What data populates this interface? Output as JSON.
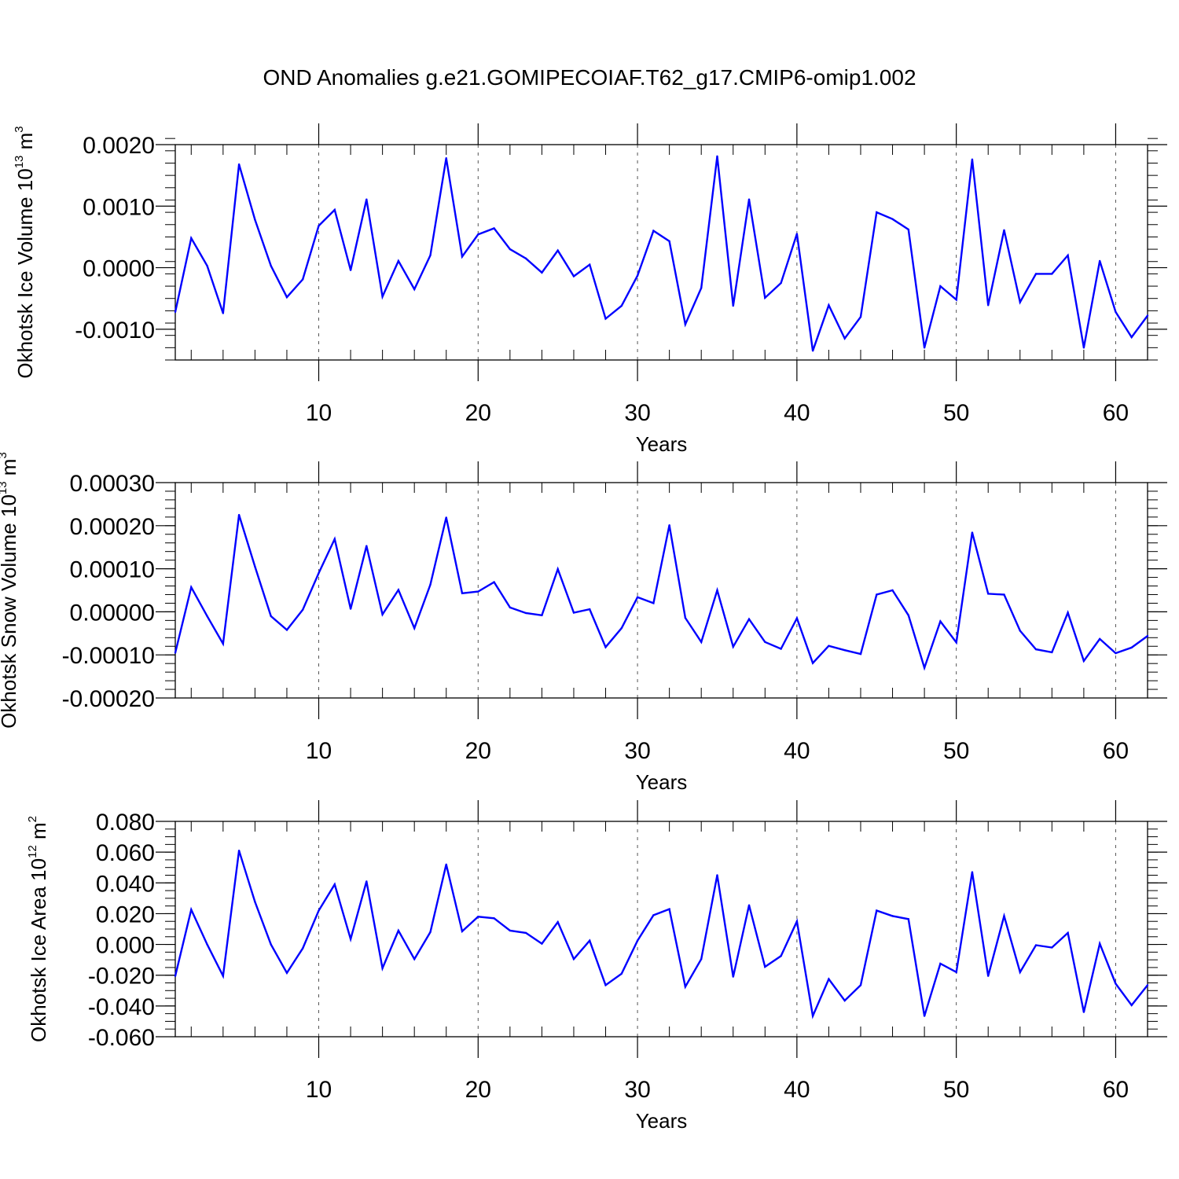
{
  "title": "OND Anomalies g.e21.GOMIPECOIAF.T62_g17.CMIP6-omip1.002",
  "colors": {
    "line": "#0000ff",
    "axis": "#000000",
    "grid": "#555555",
    "background": "#ffffff"
  },
  "chart_data": [
    {
      "type": "line",
      "ylabel_main": "Okhotsk Ice Volume 10",
      "ylabel_exp": "13",
      "ylabel_unit": " m",
      "ylabel_unit_exp": "3",
      "xlabel": "Years",
      "xlim": [
        1,
        62
      ],
      "ylim": [
        -0.0015,
        0.002
      ],
      "yticks": [
        -0.001,
        0.0,
        0.001,
        0.002
      ],
      "ytick_labels": [
        "-0.0010",
        "0.0000",
        "0.0010",
        "0.0020"
      ],
      "ymajor_step": 0.001,
      "yminor_step": 0.0002,
      "xticks": [
        10,
        20,
        30,
        40,
        50,
        60
      ],
      "xtick_labels": [
        "10",
        "20",
        "30",
        "40",
        "50",
        "60"
      ],
      "grid": "x-dashed",
      "series": [
        {
          "name": "Okhotsk Ice Volume",
          "x": [
            1,
            2,
            3,
            4,
            5,
            6,
            7,
            8,
            9,
            10,
            11,
            12,
            13,
            14,
            15,
            16,
            17,
            18,
            19,
            20,
            21,
            22,
            23,
            24,
            25,
            26,
            27,
            28,
            29,
            30,
            31,
            32,
            33,
            34,
            35,
            36,
            37,
            38,
            39,
            40,
            41,
            42,
            43,
            44,
            45,
            46,
            47,
            48,
            49,
            50,
            51,
            52,
            53,
            54,
            55,
            56,
            57,
            58,
            59,
            60,
            61,
            62
          ],
          "values": [
            -0.00072,
            0.00048,
            3e-05,
            -0.00074,
            0.00168,
            0.00078,
            3e-05,
            -0.00048,
            -0.00019,
            0.00068,
            0.00094,
            -4e-05,
            0.00111,
            -0.00047,
            0.00011,
            -0.00035,
            0.0002,
            0.00178,
            0.00018,
            0.00054,
            0.00064,
            0.0003,
            0.00015,
            -8e-05,
            0.00028,
            -0.00014,
            5e-05,
            -0.00083,
            -0.00062,
            -0.00013,
            0.0006,
            0.00043,
            -0.00092,
            -0.00033,
            0.00181,
            -0.00062,
            0.00111,
            -0.00049,
            -0.00025,
            0.00055,
            -0.00135,
            -0.00061,
            -0.00115,
            -0.0008,
            0.0009,
            0.00079,
            0.00062,
            -0.0013,
            -0.0003,
            -0.00052,
            0.00176,
            -0.00061,
            0.00061,
            -0.00056,
            -0.0001,
            -0.0001,
            0.0002,
            -0.0013,
            0.00011,
            -0.00072,
            -0.00113,
            -0.00078
          ]
        }
      ]
    },
    {
      "type": "line",
      "ylabel_main": "Okhotsk Snow Volume 10",
      "ylabel_exp": "13",
      "ylabel_unit": " m",
      "ylabel_unit_exp": "3",
      "xlabel": "Years",
      "xlim": [
        1,
        62
      ],
      "ylim": [
        -0.0002,
        0.0003
      ],
      "yticks": [
        -0.0002,
        -0.0001,
        0.0,
        0.0001,
        0.0002,
        0.0003
      ],
      "ytick_labels": [
        "-0.00020",
        "-0.00010",
        "0.00000",
        "0.00010",
        "0.00020",
        "0.00030"
      ],
      "ymajor_step": 0.0001,
      "yminor_step": 2e-05,
      "xticks": [
        10,
        20,
        30,
        40,
        50,
        60
      ],
      "xtick_labels": [
        "10",
        "20",
        "30",
        "40",
        "50",
        "60"
      ],
      "grid": "x-dashed",
      "series": [
        {
          "name": "Okhotsk Snow Volume",
          "x": [
            1,
            2,
            3,
            4,
            5,
            6,
            7,
            8,
            9,
            10,
            11,
            12,
            13,
            14,
            15,
            16,
            17,
            18,
            19,
            20,
            21,
            22,
            23,
            24,
            25,
            26,
            27,
            28,
            29,
            30,
            31,
            32,
            33,
            34,
            35,
            36,
            37,
            38,
            39,
            40,
            41,
            42,
            43,
            44,
            45,
            46,
            47,
            48,
            49,
            50,
            51,
            52,
            53,
            54,
            55,
            56,
            57,
            58,
            59,
            60,
            61,
            62
          ],
          "values": [
            -9.5e-05,
            5.7e-05,
            -1e-05,
            -7.4e-05,
            0.000225,
            0.000105,
            -1e-05,
            -4.2e-05,
            5e-06,
            9e-05,
            0.000169,
            7e-06,
            0.000153,
            -6e-06,
            5.1e-05,
            -3.8e-05,
            6.3e-05,
            0.000219,
            4.3e-05,
            4.7e-05,
            6.9e-05,
            1e-05,
            -3e-06,
            -8e-06,
            9.9e-05,
            -2e-06,
            6e-06,
            -8.2e-05,
            -3.8e-05,
            3.4e-05,
            2e-05,
            0.000201,
            -1.4e-05,
            -7e-05,
            5e-05,
            -8.1e-05,
            -1.7e-05,
            -7e-05,
            -8.6e-05,
            -1.5e-05,
            -0.000119,
            -7.9e-05,
            -8.9e-05,
            -9.8e-05,
            4e-05,
            5e-05,
            -8e-06,
            -0.00013,
            -2.2e-05,
            -7.1e-05,
            0.000184,
            4.2e-05,
            4e-05,
            -4.4e-05,
            -8.7e-05,
            -9.4e-05,
            -2e-06,
            -0.000114,
            -6.3e-05,
            -9.6e-05,
            -8.3e-05,
            -5.6e-05
          ]
        }
      ]
    },
    {
      "type": "line",
      "ylabel_main": "Okhotsk Ice Area 10",
      "ylabel_exp": "12",
      "ylabel_unit": " m",
      "ylabel_unit_exp": "2",
      "xlabel": "Years",
      "xlim": [
        1,
        62
      ],
      "ylim": [
        -0.06,
        0.08
      ],
      "yticks": [
        -0.06,
        -0.04,
        -0.02,
        0.0,
        0.02,
        0.04,
        0.06,
        0.08
      ],
      "ytick_labels": [
        "-0.060",
        "-0.040",
        "-0.020",
        "0.000",
        "0.020",
        "0.040",
        "0.060",
        "0.080"
      ],
      "ymajor_step": 0.02,
      "yminor_step": 0.005,
      "xticks": [
        10,
        20,
        30,
        40,
        50,
        60
      ],
      "xtick_labels": [
        "10",
        "20",
        "30",
        "40",
        "50",
        "60"
      ],
      "grid": "x-dashed",
      "series": [
        {
          "name": "Okhotsk Ice Area",
          "x": [
            1,
            2,
            3,
            4,
            5,
            6,
            7,
            8,
            9,
            10,
            11,
            12,
            13,
            14,
            15,
            16,
            17,
            18,
            19,
            20,
            21,
            22,
            23,
            24,
            25,
            26,
            27,
            28,
            29,
            30,
            31,
            32,
            33,
            34,
            35,
            36,
            37,
            38,
            39,
            40,
            41,
            42,
            43,
            44,
            45,
            46,
            47,
            48,
            49,
            50,
            51,
            52,
            53,
            54,
            55,
            56,
            57,
            58,
            59,
            60,
            61,
            62
          ],
          "values": [
            -0.0205,
            0.0226,
            0,
            -0.0205,
            0.061,
            0.0277,
            0,
            -0.0185,
            -0.0025,
            0.022,
            0.039,
            0.0035,
            0.041,
            -0.0155,
            0.009,
            -0.0095,
            0.008,
            0.052,
            0.0085,
            0.018,
            0.017,
            0.009,
            0.0075,
            0.0005,
            0.0145,
            -0.0095,
            0.0025,
            -0.0265,
            -0.019,
            0.0025,
            0.019,
            0.023,
            -0.0275,
            -0.0095,
            0.045,
            -0.021,
            0.0255,
            -0.0145,
            -0.0075,
            0.015,
            -0.0465,
            -0.0225,
            -0.0365,
            -0.0265,
            0.022,
            0.0185,
            0.0165,
            -0.0465,
            -0.0125,
            -0.018,
            0.047,
            -0.0205,
            0.0185,
            -0.018,
            -0.0005,
            -0.002,
            0.0075,
            -0.044,
            0.0005,
            -0.0255,
            -0.0395,
            -0.0265
          ]
        }
      ]
    }
  ]
}
